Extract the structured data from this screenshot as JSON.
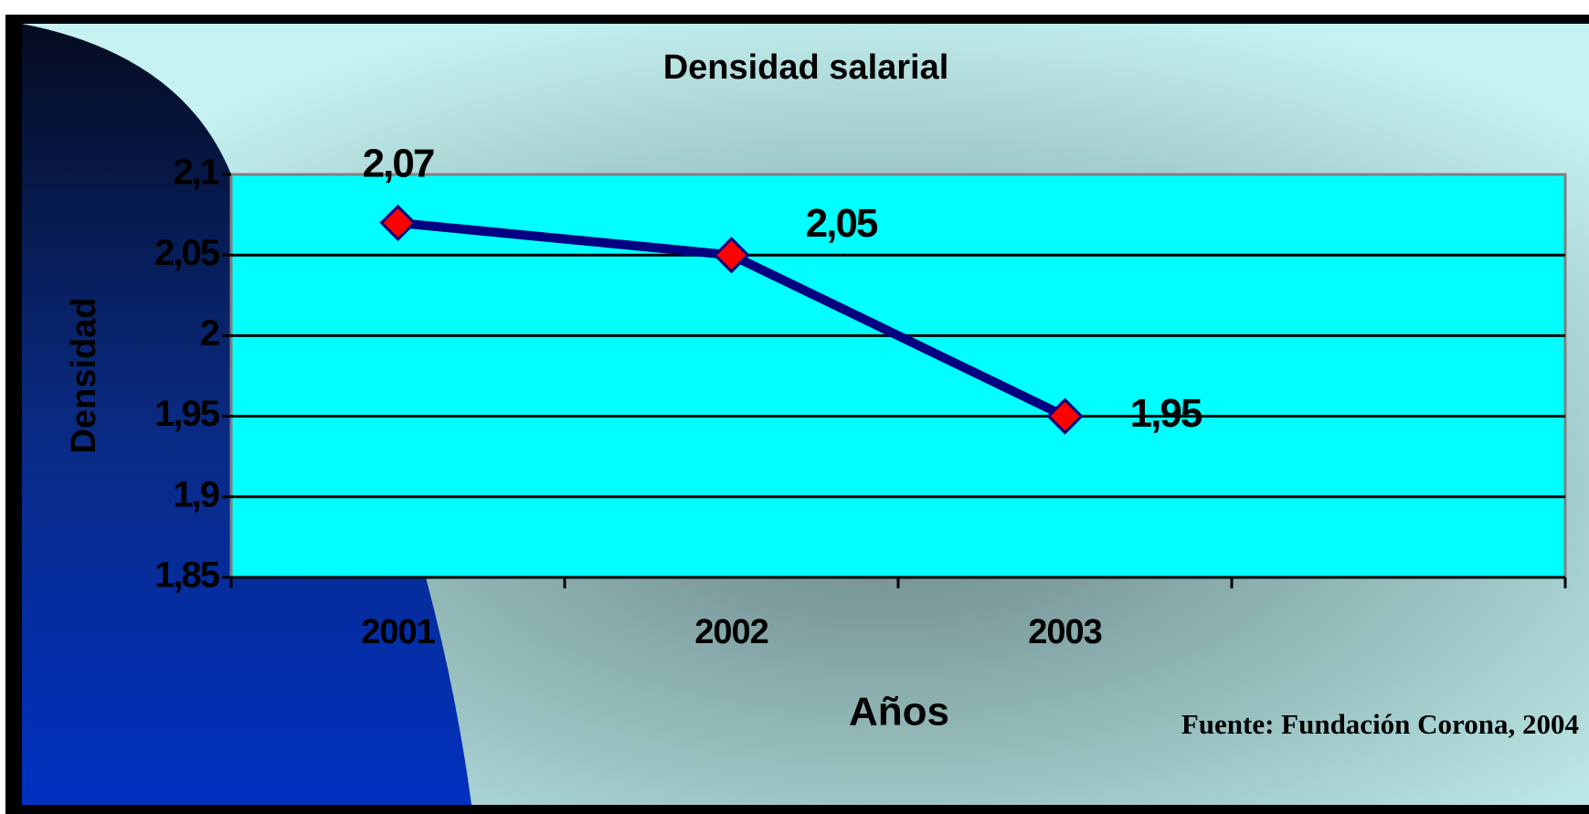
{
  "chart_data": {
    "type": "line",
    "title": "Densidad salarial",
    "x_label": "Años",
    "y_label": "Densidad",
    "source": "Fuente: Fundación Corona, 2004",
    "categories": [
      "2001",
      "2002",
      "2003",
      null
    ],
    "values": [
      2.07,
      2.05,
      1.95,
      null
    ],
    "value_labels": [
      "2,07",
      "2,05",
      "1,95",
      null
    ],
    "color": "#000080",
    "marker_color": "#ff0000",
    "plot_background": "#00ffff",
    "ylim": [
      1.85,
      2.1
    ],
    "yticks": [
      {
        "value": 1.85,
        "label": "1,85"
      },
      {
        "value": 1.9,
        "label": "1,9"
      },
      {
        "value": 1.95,
        "label": "1,95"
      },
      2,
      {
        "value": 2.05,
        "label": "2,05"
      },
      {
        "value": 2.1,
        "label": "2,1"
      }
    ],
    "grid": true
  }
}
